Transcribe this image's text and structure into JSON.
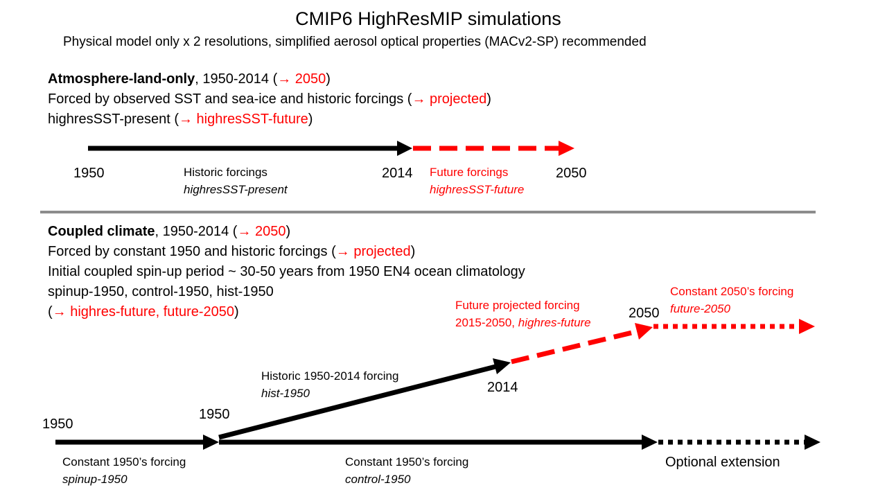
{
  "title": "CMIP6 HighResMIP simulations",
  "subtitle": "Physical model only x 2 resolutions, simplified aerosol optical properties (MACv2-SP) recommended",
  "colors": {
    "black": "#000000",
    "red": "#ff0000",
    "divider": "#8c8c8c"
  },
  "atmos": {
    "heading_bold": "Atmosphere-land-only",
    "heading_rest": ", 1950-2014 (",
    "heading_red": "→ 2050",
    "heading_close": ")",
    "forced_text": "Forced by observed SST and sea-ice and historic forcings (",
    "forced_red": "→ projected",
    "forced_close": ")",
    "exp_text": "highresSST-present (",
    "exp_red": "→ highresSST-future",
    "exp_close": ")",
    "year_1950": "1950",
    "year_2014": "2014",
    "year_2050": "2050",
    "historic_label": "Historic forcings",
    "historic_exp": "highresSST-present",
    "future_label": "Future forcings",
    "future_exp": "highresSST-future"
  },
  "coupled": {
    "heading_bold": "Coupled climate",
    "heading_rest": ", 1950-2014 (",
    "heading_red": "→ 2050",
    "heading_close": ")",
    "forced_text": "Forced by constant 1950 and historic forcings (",
    "forced_red": "→ projected",
    "forced_close": ")",
    "spinup_text": "Initial coupled spin-up period ~ 30-50 years from 1950 EN4 ocean climatology",
    "exps_text": "spinup-1950, control-1950, hist-1950",
    "exps2_open": "(",
    "exps2_red": "→ highres-future, future-2050",
    "exps2_close": ")",
    "year_1950_left": "1950",
    "year_1950_mid": "1950",
    "year_2014": "2014",
    "year_2050": "2050",
    "spinup_label": "Constant 1950’s forcing",
    "spinup_exp": "spinup-1950",
    "control_label": "Constant 1950’s forcing",
    "control_exp": "control-1950",
    "hist_label": "Historic 1950-2014 forcing",
    "hist_exp": "hist-1950",
    "future_label": "Future projected forcing",
    "future_label2": "2015-2050, ",
    "future_exp": "highres-future",
    "const2050_label": "Constant 2050’s forcing",
    "const2050_exp": "future-2050",
    "optional_label": "Optional extension"
  }
}
